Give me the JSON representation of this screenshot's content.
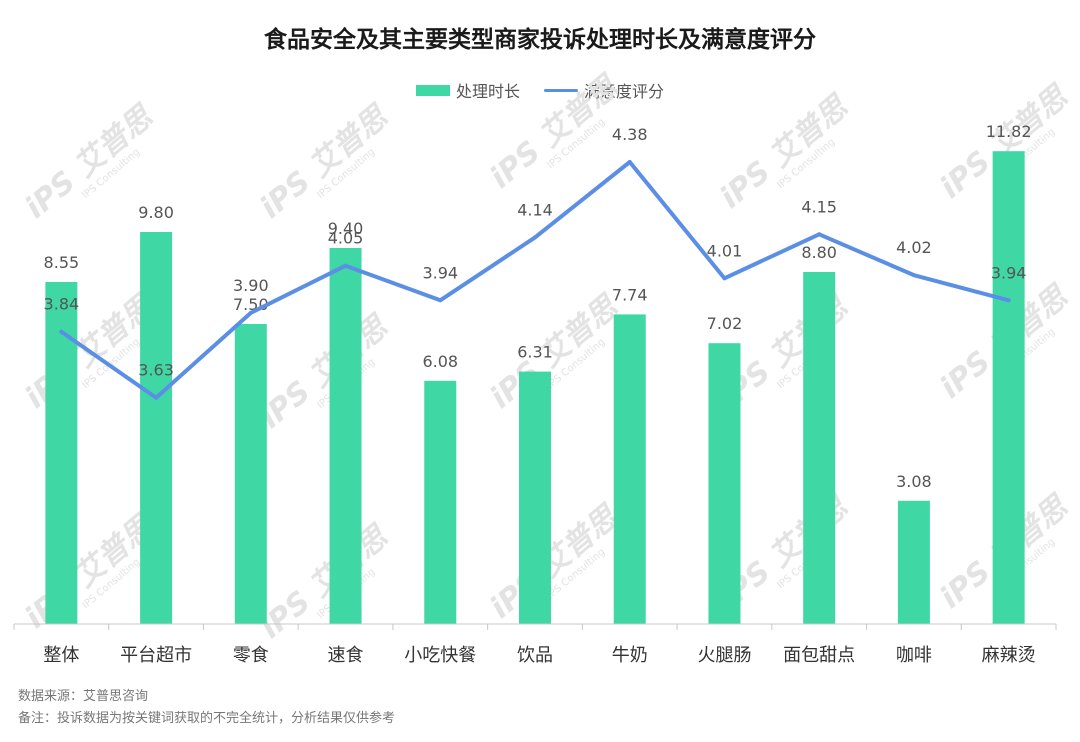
{
  "chart_data": {
    "type": "bar",
    "title": "食品安全及其主要类型商家投诉处理时长及满意度评分",
    "categories": [
      "整体",
      "平台超市",
      "零食",
      "速食",
      "小吃快餐",
      "饮品",
      "牛奶",
      "火腿肠",
      "面包甜点",
      "咖啡",
      "麻辣烫"
    ],
    "series": [
      {
        "name": "处理时长",
        "type": "bar",
        "color": "#3fd8a4",
        "values": [
          8.55,
          9.8,
          7.5,
          9.4,
          6.08,
          6.31,
          7.74,
          7.02,
          8.8,
          3.08,
          11.82
        ],
        "labels": [
          "8.55",
          "9.80",
          "7.50",
          "9.40",
          "6.08",
          "6.31",
          "7.74",
          "7.02",
          "8.80",
          "3.08",
          "11.82"
        ]
      },
      {
        "name": "满意度评分",
        "type": "line",
        "color": "#5b8fe6",
        "values": [
          3.84,
          3.63,
          3.9,
          4.05,
          3.94,
          4.14,
          4.38,
          4.01,
          4.15,
          4.02,
          3.94
        ],
        "labels": [
          "3.84",
          "3.63",
          "3.90",
          "4.05",
          "3.94",
          "4.14",
          "4.38",
          "4.01",
          "4.15",
          "4.02",
          "3.94"
        ]
      }
    ],
    "bar_axis_range": [
      0,
      12
    ],
    "line_axis_range": [
      3.4,
      4.45
    ],
    "grid": false,
    "legend_position": "top-center"
  },
  "source_lines": [
    "数据来源：艾普思咨询",
    "备注：投诉数据为按关键词获取的不完全统计，分析结果仅供参考"
  ],
  "watermark": {
    "logo_text": "iPS 艾普思",
    "sub_text": "IPS Consulting"
  }
}
